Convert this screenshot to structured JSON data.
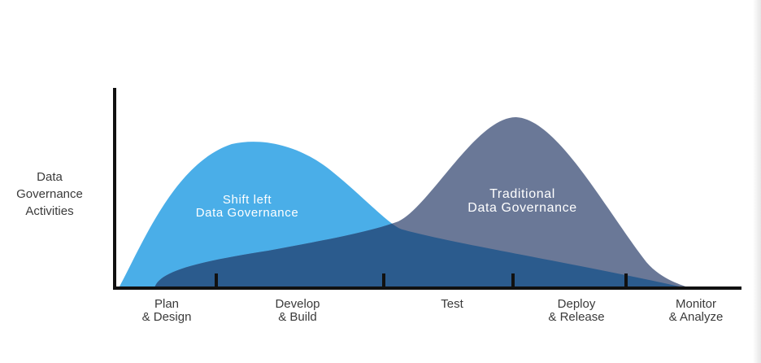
{
  "y_axis_label": [
    "Data",
    "Governance",
    "Activities"
  ],
  "curves": [
    {
      "label": [
        "Shift left",
        "Data Governance"
      ],
      "color": "#4aaee8"
    },
    {
      "label": [
        "Traditional",
        "Data Governance"
      ],
      "color": "#6a7897"
    }
  ],
  "overlap_color": "#2b5b8d",
  "axis_color": "#111111",
  "phases": [
    {
      "label": [
        "Plan",
        "& Design"
      ]
    },
    {
      "label": [
        "Develop",
        "& Build"
      ]
    },
    {
      "label": [
        "Test"
      ]
    },
    {
      "label": [
        "Deploy",
        "& Release"
      ]
    },
    {
      "label": [
        "Monitor",
        "& Analyze"
      ]
    }
  ]
}
